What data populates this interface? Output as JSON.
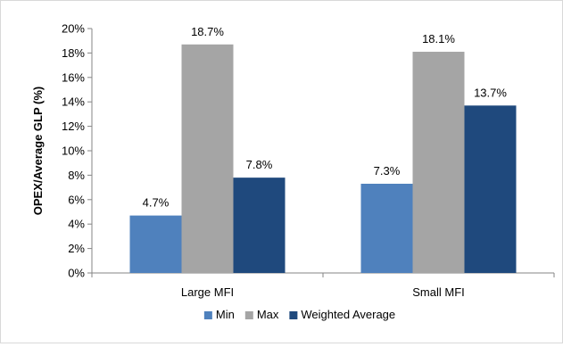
{
  "chart_data": {
    "type": "bar",
    "title": "",
    "xlabel": "",
    "ylabel": "OPEX/Average GLP (%)",
    "categories": [
      "Large MFI",
      "Small MFI"
    ],
    "series": [
      {
        "name": "Min",
        "values": [
          4.7,
          7.3
        ],
        "labels": [
          "4.7%",
          "7.3%"
        ],
        "color": "#4F81BD"
      },
      {
        "name": "Max",
        "values": [
          18.7,
          18.1
        ],
        "labels": [
          "18.7%",
          "18.1%"
        ],
        "color": "#A5A5A5"
      },
      {
        "name": "Weighted Average",
        "values": [
          7.8,
          13.7
        ],
        "labels": [
          "7.8%",
          "13.7%"
        ],
        "color": "#1F497D"
      }
    ],
    "ylim": [
      0,
      20
    ],
    "yticks": [
      0,
      2,
      4,
      6,
      8,
      10,
      12,
      14,
      16,
      18,
      20
    ],
    "ytick_labels": [
      "0%",
      "2%",
      "4%",
      "6%",
      "8%",
      "10%",
      "12%",
      "14%",
      "16%",
      "18%",
      "20%"
    ],
    "grid": false,
    "legend_position": "bottom"
  }
}
